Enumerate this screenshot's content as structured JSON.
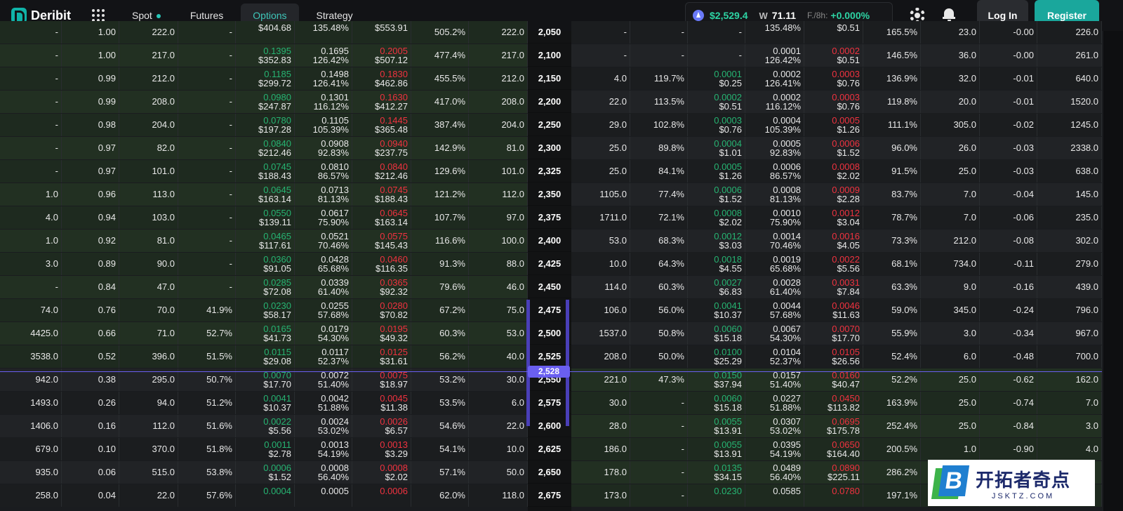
{
  "header": {
    "brand": "Deribit",
    "tabs": [
      "Spot",
      "Futures",
      "Options",
      "Strategy"
    ],
    "active_tab": "Options",
    "eth_price": "$2,529.4",
    "dvol_label": "W",
    "dvol_value": "71.11",
    "funding_label": "F./8h:",
    "funding_value": "+0.000%",
    "login": "Log In",
    "register": "Register"
  },
  "current_price_badge": "2,528",
  "watermark": {
    "title": "开拓者奇点",
    "url": "JSKTZ.COM",
    "logo_letter": "B"
  },
  "rows": [
    {
      "call": [
        "-",
        "1.00",
        "222.0",
        "-",
        "",
        "$404.68",
        "",
        "135.48%",
        "",
        "$553.91",
        "505.2%",
        "222.0"
      ],
      "strike": "2,050",
      "put": [
        "-",
        "-",
        "-",
        "",
        "135.48%",
        "",
        "$0.51",
        "165.5%",
        "23.0",
        "-0.00",
        "226.0"
      ]
    },
    {
      "call": [
        "-",
        "1.00",
        "217.0",
        "-",
        "0.1395",
        "$352.83",
        "0.1695",
        "126.42%",
        "0.2005",
        "$507.12",
        "477.4%",
        "217.0"
      ],
      "strike": "2,100",
      "put": [
        "-",
        "-",
        "-",
        "0.0001",
        "126.42%",
        "0.0002",
        "$0.51",
        "146.5%",
        "36.0",
        "-0.00",
        "261.0"
      ]
    },
    {
      "call": [
        "-",
        "0.99",
        "212.0",
        "-",
        "0.1185",
        "$299.72",
        "0.1498",
        "126.41%",
        "0.1830",
        "$462.86",
        "455.5%",
        "212.0"
      ],
      "strike": "2,150",
      "put": [
        "4.0",
        "119.7%",
        "0.0001",
        "$0.25",
        "0.0002",
        "126.41%",
        "0.0003",
        "$0.76",
        "136.9%",
        "32.0",
        "-0.01",
        "640.0"
      ]
    },
    {
      "call": [
        "-",
        "0.99",
        "208.0",
        "-",
        "0.0980",
        "$247.87",
        "0.1301",
        "116.12%",
        "0.1630",
        "$412.27",
        "417.0%",
        "208.0"
      ],
      "strike": "2,200",
      "put": [
        "22.0",
        "113.5%",
        "0.0002",
        "$0.51",
        "0.0002",
        "116.12%",
        "0.0003",
        "$0.76",
        "119.8%",
        "20.0",
        "-0.01",
        "1520.0"
      ]
    },
    {
      "call": [
        "-",
        "0.98",
        "204.0",
        "-",
        "0.0780",
        "$197.28",
        "0.1105",
        "105.39%",
        "0.1445",
        "$365.48",
        "387.4%",
        "204.0"
      ],
      "strike": "2,250",
      "put": [
        "29.0",
        "102.8%",
        "0.0003",
        "$0.76",
        "0.0004",
        "105.39%",
        "0.0005",
        "$1.26",
        "111.1%",
        "305.0",
        "-0.02",
        "1245.0"
      ]
    },
    {
      "call": [
        "-",
        "0.97",
        "82.0",
        "-",
        "0.0840",
        "$212.46",
        "0.0908",
        "92.83%",
        "0.0940",
        "$237.75",
        "142.9%",
        "81.0"
      ],
      "strike": "2,300",
      "put": [
        "25.0",
        "89.8%",
        "0.0004",
        "$1.01",
        "0.0005",
        "92.83%",
        "0.0006",
        "$1.52",
        "96.0%",
        "26.0",
        "-0.03",
        "2338.0"
      ]
    },
    {
      "call": [
        "-",
        "0.97",
        "101.0",
        "-",
        "0.0745",
        "$188.43",
        "0.0810",
        "86.57%",
        "0.0840",
        "$212.46",
        "129.6%",
        "101.0"
      ],
      "strike": "2,325",
      "put": [
        "25.0",
        "84.1%",
        "0.0005",
        "$1.26",
        "0.0006",
        "86.57%",
        "0.0008",
        "$2.02",
        "91.5%",
        "25.0",
        "-0.03",
        "638.0"
      ]
    },
    {
      "call": [
        "1.0",
        "0.96",
        "113.0",
        "-",
        "0.0645",
        "$163.14",
        "0.0713",
        "81.13%",
        "0.0745",
        "$188.43",
        "121.2%",
        "112.0"
      ],
      "strike": "2,350",
      "put": [
        "1105.0",
        "77.4%",
        "0.0006",
        "$1.52",
        "0.0008",
        "81.13%",
        "0.0009",
        "$2.28",
        "83.7%",
        "7.0",
        "-0.04",
        "145.0"
      ]
    },
    {
      "call": [
        "4.0",
        "0.94",
        "103.0",
        "-",
        "0.0550",
        "$139.11",
        "0.0617",
        "75.90%",
        "0.0645",
        "$163.14",
        "107.7%",
        "97.0"
      ],
      "strike": "2,375",
      "put": [
        "1711.0",
        "72.1%",
        "0.0008",
        "$2.02",
        "0.0010",
        "75.90%",
        "0.0012",
        "$3.04",
        "78.7%",
        "7.0",
        "-0.06",
        "235.0"
      ]
    },
    {
      "call": [
        "1.0",
        "0.92",
        "81.0",
        "-",
        "0.0465",
        "$117.61",
        "0.0521",
        "70.46%",
        "0.0575",
        "$145.43",
        "116.6%",
        "100.0"
      ],
      "strike": "2,400",
      "put": [
        "53.0",
        "68.3%",
        "0.0012",
        "$3.03",
        "0.0014",
        "70.46%",
        "0.0016",
        "$4.05",
        "73.3%",
        "212.0",
        "-0.08",
        "302.0"
      ]
    },
    {
      "call": [
        "3.0",
        "0.89",
        "90.0",
        "-",
        "0.0360",
        "$91.05",
        "0.0428",
        "65.68%",
        "0.0460",
        "$116.35",
        "91.3%",
        "88.0"
      ],
      "strike": "2,425",
      "put": [
        "10.0",
        "64.3%",
        "0.0018",
        "$4.55",
        "0.0019",
        "65.68%",
        "0.0022",
        "$5.56",
        "68.1%",
        "734.0",
        "-0.11",
        "279.0"
      ]
    },
    {
      "call": [
        "-",
        "0.84",
        "47.0",
        "-",
        "0.0285",
        "$72.08",
        "0.0339",
        "61.40%",
        "0.0365",
        "$92.32",
        "79.6%",
        "46.0"
      ],
      "strike": "2,450",
      "put": [
        "114.0",
        "60.3%",
        "0.0027",
        "$6.83",
        "0.0028",
        "61.40%",
        "0.0031",
        "$7.84",
        "63.3%",
        "9.0",
        "-0.16",
        "439.0"
      ]
    },
    {
      "call": [
        "74.0",
        "0.76",
        "70.0",
        "41.9%",
        "0.0230",
        "$58.17",
        "0.0255",
        "57.68%",
        "0.0280",
        "$70.82",
        "67.2%",
        "75.0"
      ],
      "strike": "2,475",
      "put": [
        "106.0",
        "56.0%",
        "0.0041",
        "$10.37",
        "0.0044",
        "57.68%",
        "0.0046",
        "$11.63",
        "59.0%",
        "345.0",
        "-0.24",
        "796.0"
      ]
    },
    {
      "call": [
        "4425.0",
        "0.66",
        "71.0",
        "52.7%",
        "0.0165",
        "$41.73",
        "0.0179",
        "54.30%",
        "0.0195",
        "$49.32",
        "60.3%",
        "53.0"
      ],
      "strike": "2,500",
      "put": [
        "1537.0",
        "50.8%",
        "0.0060",
        "$15.18",
        "0.0067",
        "54.30%",
        "0.0070",
        "$17.70",
        "55.9%",
        "3.0",
        "-0.34",
        "967.0"
      ]
    },
    {
      "call": [
        "3538.0",
        "0.52",
        "396.0",
        "51.5%",
        "0.0115",
        "$29.08",
        "0.0117",
        "52.37%",
        "0.0125",
        "$31.61",
        "56.2%",
        "40.0"
      ],
      "strike": "2,525",
      "put": [
        "208.0",
        "50.0%",
        "0.0100",
        "$25.29",
        "0.0104",
        "52.37%",
        "0.0105",
        "$26.56",
        "52.4%",
        "6.0",
        "-0.48",
        "700.0"
      ]
    },
    {
      "call": [
        "942.0",
        "0.38",
        "295.0",
        "50.7%",
        "0.0070",
        "$17.70",
        "0.0072",
        "51.40%",
        "0.0075",
        "$18.97",
        "53.2%",
        "30.0"
      ],
      "strike": "2,550",
      "put": [
        "221.0",
        "47.3%",
        "0.0150",
        "$37.94",
        "0.0157",
        "51.40%",
        "0.0160",
        "$40.47",
        "52.2%",
        "25.0",
        "-0.62",
        "162.0"
      ]
    },
    {
      "call": [
        "1493.0",
        "0.26",
        "94.0",
        "51.2%",
        "0.0041",
        "$10.37",
        "0.0042",
        "51.88%",
        "0.0045",
        "$11.38",
        "53.5%",
        "6.0"
      ],
      "strike": "2,575",
      "put": [
        "30.0",
        "-",
        "0.0060",
        "$15.18",
        "0.0227",
        "51.88%",
        "0.0450",
        "$113.82",
        "163.9%",
        "25.0",
        "-0.74",
        "7.0"
      ]
    },
    {
      "call": [
        "1406.0",
        "0.16",
        "112.0",
        "51.6%",
        "0.0022",
        "$5.56",
        "0.0024",
        "53.02%",
        "0.0026",
        "$6.57",
        "54.6%",
        "22.0"
      ],
      "strike": "2,600",
      "put": [
        "28.0",
        "-",
        "0.0055",
        "$13.91",
        "0.0307",
        "53.02%",
        "0.0695",
        "$175.78",
        "252.4%",
        "25.0",
        "-0.84",
        "3.0"
      ]
    },
    {
      "call": [
        "679.0",
        "0.10",
        "370.0",
        "51.8%",
        "0.0011",
        "$2.78",
        "0.0013",
        "54.19%",
        "0.0013",
        "$3.29",
        "54.1%",
        "10.0"
      ],
      "strike": "2,625",
      "put": [
        "186.0",
        "-",
        "0.0055",
        "$13.91",
        "0.0395",
        "54.19%",
        "0.0650",
        "$164.40",
        "200.5%",
        "1.0",
        "-0.90",
        "4.0"
      ]
    },
    {
      "call": [
        "935.0",
        "0.06",
        "515.0",
        "53.8%",
        "0.0006",
        "$1.52",
        "0.0008",
        "56.40%",
        "0.0008",
        "$2.02",
        "57.1%",
        "50.0"
      ],
      "strike": "2,650",
      "put": [
        "178.0",
        "-",
        "0.0135",
        "$34.15",
        "0.0489",
        "56.40%",
        "0.0890",
        "$225.11",
        "286.2%",
        "",
        "",
        ""
      ]
    },
    {
      "call": [
        "258.0",
        "0.04",
        "22.0",
        "57.6%",
        "0.0004",
        "",
        "0.0005",
        "",
        "0.0006",
        "",
        "62.0%",
        "118.0"
      ],
      "strike": "2,675",
      "put": [
        "173.0",
        "-",
        "0.0230",
        "",
        "0.0585",
        "",
        "0.0780",
        "",
        "197.1%",
        "",
        "",
        ""
      ]
    }
  ]
}
